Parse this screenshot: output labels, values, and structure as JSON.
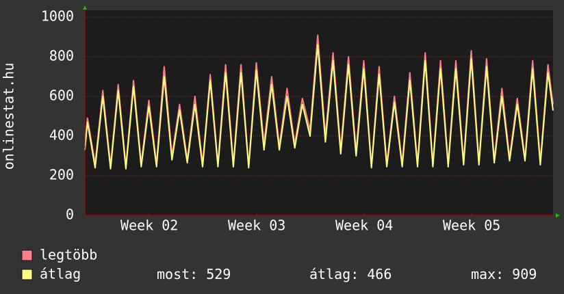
{
  "chart_data": {
    "type": "line",
    "ylabel": "onlinestat.hu",
    "x": [
      0,
      0.17,
      0.67,
      1.17,
      1.67,
      2.17,
      2.67,
      3.17,
      3.67,
      4.17,
      4.67,
      5.17,
      5.67,
      6.17,
      6.67,
      7.17,
      7.67,
      8.17,
      8.67,
      9.17,
      9.67,
      10.17,
      10.67,
      11.17,
      11.67,
      12.17,
      12.67,
      13.17,
      13.67,
      14.17,
      14.67,
      15.17,
      15.67,
      16.17,
      16.67,
      17.17,
      17.67,
      18.17,
      18.67,
      19.17,
      19.67,
      20.17,
      20.67,
      21.17,
      21.67,
      22.17,
      22.67,
      23.17,
      23.67,
      24.17,
      24.67,
      25.17,
      25.67,
      26.17,
      26.67,
      27.17,
      27.67,
      28.17,
      28.67,
      29.17,
      29.67,
      30.17,
      30.5
    ],
    "series": [
      {
        "name": "legtöbb",
        "color": "#ff7f86",
        "values": [
          350,
          490,
          260,
          630,
          250,
          660,
          250,
          680,
          260,
          580,
          260,
          750,
          300,
          560,
          280,
          600,
          260,
          710,
          260,
          760,
          260,
          760,
          250,
          770,
          360,
          700,
          350,
          640,
          360,
          590,
          430,
          909,
          400,
          820,
          330,
          800,
          320,
          780,
          250,
          750,
          260,
          600,
          260,
          720,
          260,
          820,
          260,
          780,
          260,
          780,
          270,
          830,
          270,
          790,
          280,
          640,
          290,
          590,
          290,
          780,
          270,
          760,
          560
        ]
      },
      {
        "name": "átlag",
        "color": "#ffff80",
        "values": [
          330,
          470,
          240,
          600,
          235,
          630,
          235,
          650,
          245,
          550,
          245,
          700,
          280,
          530,
          265,
          560,
          245,
          680,
          245,
          720,
          245,
          720,
          240,
          730,
          330,
          660,
          330,
          600,
          340,
          560,
          400,
          860,
          370,
          780,
          310,
          760,
          300,
          740,
          240,
          710,
          245,
          570,
          245,
          680,
          245,
          780,
          245,
          740,
          245,
          740,
          255,
          790,
          255,
          750,
          265,
          600,
          275,
          560,
          275,
          740,
          255,
          720,
          529
        ]
      }
    ],
    "xlim": [
      0,
      30.5
    ],
    "xticks": [
      {
        "value": 4.2,
        "label": "Week 02"
      },
      {
        "value": 11.2,
        "label": "Week 03"
      },
      {
        "value": 18.2,
        "label": "Week 04"
      },
      {
        "value": 25.2,
        "label": "Week 05"
      }
    ],
    "ylim": [
      0,
      1000
    ],
    "yticks": [
      0,
      200,
      400,
      600,
      800,
      1000
    ],
    "grid": true,
    "stats": [
      {
        "label": "most:",
        "value": 529
      },
      {
        "label": "átlag:",
        "value": 466
      },
      {
        "label": "max:",
        "value": 909
      }
    ]
  }
}
